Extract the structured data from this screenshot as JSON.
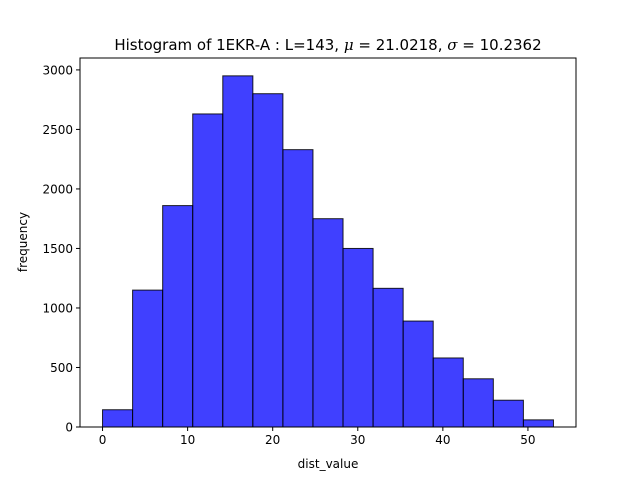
{
  "chart_data": {
    "type": "bar",
    "title_prefix": "Histogram of 1EKR-A : L=143, ",
    "title_mu_symbol": "μ",
    "title_mu_value": " = 21.0218, ",
    "title_sigma_symbol": "σ",
    "title_sigma_value": " = 10.2362",
    "xlabel": "dist_value",
    "ylabel": "frequency",
    "bin_edges": [
      0,
      3.533,
      7.067,
      10.6,
      14.133,
      17.667,
      21.2,
      24.733,
      28.267,
      31.8,
      35.333,
      38.867,
      42.4,
      45.933,
      49.467,
      53.0
    ],
    "values": [
      145,
      1150,
      1860,
      2630,
      2950,
      2800,
      2330,
      1750,
      1500,
      1165,
      890,
      580,
      405,
      225,
      60
    ],
    "xlim": [
      -2.65,
      55.65
    ],
    "ylim": [
      0,
      3100
    ],
    "xticks": [
      0,
      10,
      20,
      30,
      40,
      50
    ],
    "yticks": [
      0,
      500,
      1000,
      1500,
      2000,
      2500,
      3000
    ],
    "bar_color": "#0000ff",
    "bar_opacity": 0.75,
    "edge_color": "#000000",
    "grid": false
  }
}
